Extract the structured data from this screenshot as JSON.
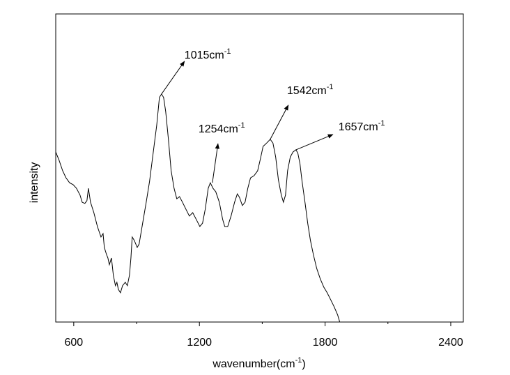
{
  "chart_data": {
    "type": "line",
    "ylabel": "intensity",
    "xlabel": {
      "text": "wavenumber(cm",
      "sup": "-1",
      "after": ")"
    },
    "xlim": [
      514,
      2460
    ],
    "ylim": [
      0,
      100
    ],
    "xticks": [
      600,
      1200,
      1800,
      2400
    ],
    "xminor": [
      900,
      1500,
      2100
    ],
    "color": "#000000",
    "x": [
      514,
      530,
      547,
      563,
      580,
      597,
      613,
      630,
      640,
      653,
      663,
      670,
      680,
      696,
      713,
      730,
      740,
      746,
      756,
      763,
      770,
      780,
      789,
      799,
      806,
      813,
      823,
      833,
      846,
      856,
      866,
      873,
      879,
      889,
      903,
      912,
      929,
      946,
      962,
      979,
      996,
      1009,
      1019,
      1029,
      1039,
      1052,
      1065,
      1079,
      1092,
      1105,
      1119,
      1135,
      1152,
      1168,
      1185,
      1202,
      1215,
      1228,
      1242,
      1252,
      1265,
      1278,
      1295,
      1311,
      1321,
      1335,
      1351,
      1368,
      1381,
      1391,
      1405,
      1418,
      1431,
      1444,
      1461,
      1478,
      1491,
      1504,
      1521,
      1538,
      1551,
      1564,
      1577,
      1591,
      1601,
      1611,
      1621,
      1634,
      1647,
      1661,
      1670,
      1680,
      1690,
      1704,
      1717,
      1730,
      1744,
      1760,
      1777,
      1794,
      1810,
      1827,
      1843,
      1860,
      1870
    ],
    "values": [
      55.2,
      52.5,
      49.1,
      46.8,
      45.2,
      44.6,
      43.4,
      41.2,
      38.9,
      38.5,
      39.4,
      43.4,
      38.9,
      35.5,
      31.0,
      27.6,
      28.7,
      24.2,
      22.0,
      20.8,
      18.6,
      20.8,
      15.2,
      11.8,
      12.9,
      10.6,
      9.5,
      11.8,
      12.9,
      11.8,
      15.2,
      20.8,
      27.6,
      26.5,
      24.2,
      25.3,
      32.1,
      38.9,
      45.7,
      54.8,
      63.8,
      72.9,
      74.0,
      72.9,
      68.3,
      59.3,
      49.1,
      43.4,
      40.0,
      40.7,
      38.9,
      36.7,
      34.4,
      35.5,
      33.3,
      31.0,
      32.1,
      36.7,
      43.4,
      45.2,
      43.4,
      42.3,
      38.9,
      33.3,
      31.0,
      31.0,
      34.4,
      38.9,
      41.6,
      40.5,
      37.8,
      38.9,
      43.4,
      46.8,
      47.5,
      49.1,
      52.9,
      57.0,
      58.1,
      59.3,
      58.1,
      53.6,
      46.2,
      41.2,
      38.9,
      41.2,
      49.1,
      53.6,
      55.2,
      55.9,
      54.8,
      51.4,
      45.7,
      38.9,
      32.1,
      26.5,
      21.9,
      17.4,
      14.0,
      11.3,
      9.5,
      7.2,
      5.0,
      2.3,
      0
    ],
    "annotations": [
      {
        "text": "1015cm",
        "sup": "-1",
        "x": 1019,
        "y": 74.0
      },
      {
        "text": "1254cm",
        "sup": "-1",
        "x": 1262,
        "y": 45.2
      },
      {
        "text": "1542cm",
        "sup": "-1",
        "x": 1538,
        "y": 59.3
      },
      {
        "text": "1657cm",
        "sup": "-1",
        "x": 1661,
        "y": 55.9
      }
    ]
  }
}
